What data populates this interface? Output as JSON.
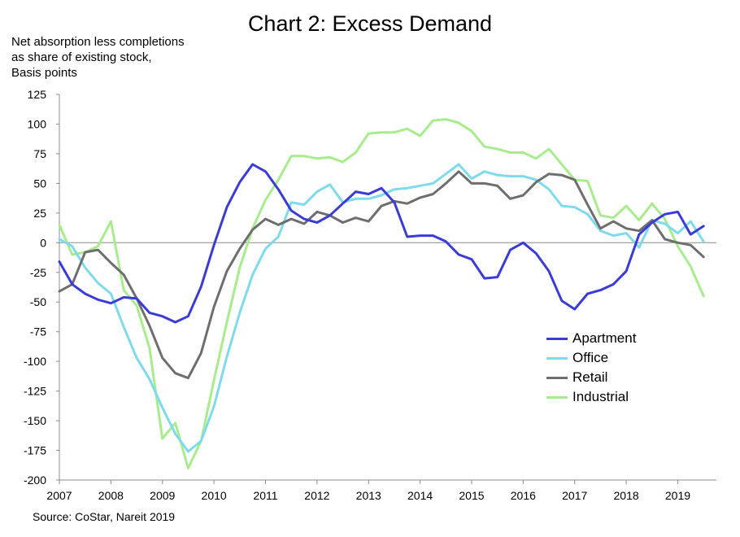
{
  "chart_data": {
    "type": "line",
    "title": "Chart 2: Excess Demand",
    "ylabel_lines": [
      "Net absorption less completions",
      "as share of existing stock,",
      "Basis points"
    ],
    "source": "Source: CoStar, Nareit 2019",
    "ylim": [
      -200,
      125
    ],
    "yticks": [
      125,
      100,
      75,
      50,
      25,
      0,
      -25,
      -50,
      -75,
      -100,
      -125,
      -150,
      -175,
      -200
    ],
    "xlim": [
      2007,
      2019.75
    ],
    "xticks": [
      "2007",
      "2008",
      "2009",
      "2010",
      "2011",
      "2012",
      "2013",
      "2014",
      "2015",
      "2016",
      "2017",
      "2018",
      "2019"
    ],
    "x": [
      2007.0,
      2007.25,
      2007.5,
      2007.75,
      2008.0,
      2008.25,
      2008.5,
      2008.75,
      2009.0,
      2009.25,
      2009.5,
      2009.75,
      2010.0,
      2010.25,
      2010.5,
      2010.75,
      2011.0,
      2011.25,
      2011.5,
      2011.75,
      2012.0,
      2012.25,
      2012.5,
      2012.75,
      2013.0,
      2013.25,
      2013.5,
      2013.75,
      2014.0,
      2014.25,
      2014.5,
      2014.75,
      2015.0,
      2015.25,
      2015.5,
      2015.75,
      2016.0,
      2016.25,
      2016.5,
      2016.75,
      2017.0,
      2017.25,
      2017.5,
      2017.75,
      2018.0,
      2018.25,
      2018.5,
      2018.75,
      2019.0,
      2019.25,
      2019.5
    ],
    "series": [
      {
        "name": "Apartment",
        "color": "#3b3bd8",
        "values": [
          -16,
          -35,
          -43,
          -48,
          -51,
          -46,
          -47,
          -59,
          -62,
          -67,
          -62,
          -37,
          -2,
          30,
          51,
          66,
          60,
          45,
          27,
          20,
          17,
          23,
          33,
          43,
          41,
          46,
          34,
          5,
          6,
          6,
          1,
          -10,
          -14,
          -30,
          -29,
          -6,
          0,
          -9,
          -24,
          -49,
          -56,
          -43,
          -40,
          -35,
          -24,
          7,
          17,
          24,
          26,
          7,
          14
        ]
      },
      {
        "name": "Office",
        "color": "#7fdbeb",
        "values": [
          3,
          -3,
          -21,
          -34,
          -43,
          -71,
          -97,
          -115,
          -139,
          -161,
          -176,
          -167,
          -138,
          -96,
          -59,
          -27,
          -5,
          5,
          34,
          32,
          43,
          49,
          34,
          37,
          37,
          40,
          45,
          46,
          48,
          50,
          58,
          66,
          54,
          60,
          57,
          56,
          56,
          53,
          45,
          31,
          30,
          24,
          10,
          6,
          8,
          -4,
          19,
          16,
          8,
          18,
          1
        ]
      },
      {
        "name": "Retail",
        "color": "#6e6e6e",
        "values": [
          -41,
          -35,
          -8,
          -6,
          -17,
          -27,
          -47,
          -70,
          -97,
          -110,
          -114,
          -93,
          -54,
          -24,
          -5,
          11,
          20,
          15,
          20,
          16,
          26,
          23,
          17,
          21,
          18,
          31,
          35,
          33,
          38,
          41,
          50,
          60,
          50,
          50,
          48,
          37,
          40,
          51,
          58,
          57,
          53,
          32,
          12,
          18,
          12,
          10,
          19,
          3,
          0,
          -2,
          -12
        ]
      },
      {
        "name": "Industrial",
        "color": "#a9ec8e",
        "values": [
          15,
          -10,
          -8,
          -3,
          18,
          -40,
          -53,
          -89,
          -165,
          -152,
          -190,
          -167,
          -116,
          -67,
          -21,
          12,
          36,
          53,
          73,
          73,
          71,
          72,
          68,
          76,
          92,
          93,
          93,
          96,
          90,
          103,
          104,
          101,
          94,
          81,
          79,
          76,
          76,
          71,
          79,
          66,
          53,
          52,
          23,
          21,
          31,
          19,
          33,
          20,
          -3,
          -20,
          -45
        ]
      }
    ]
  }
}
